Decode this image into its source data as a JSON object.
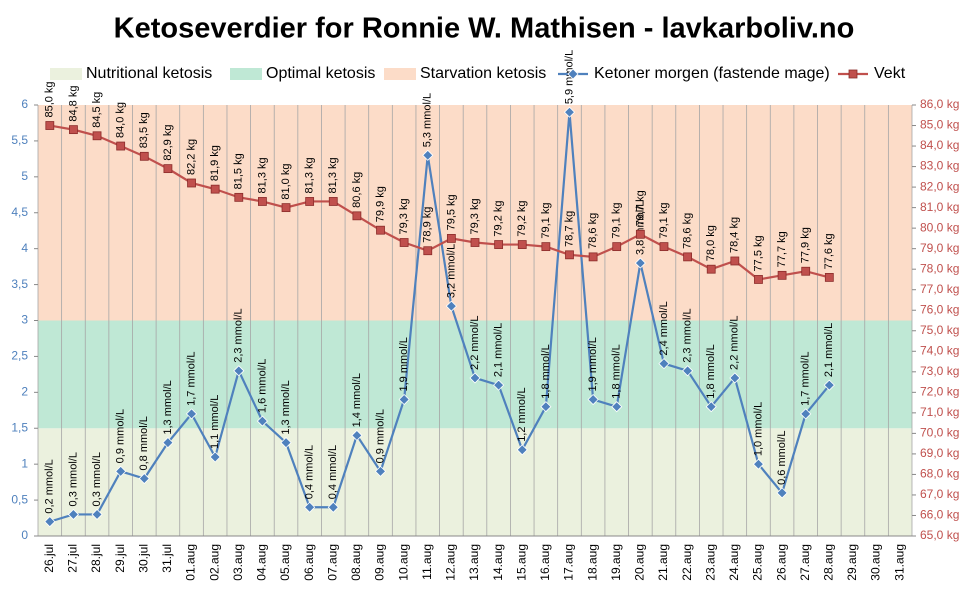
{
  "chart_data": {
    "type": "line",
    "title": "Ketoseverdier for Ronnie W. Mathisen - lavkarboliv.no",
    "categories": [
      "26.jul",
      "27.jul",
      "28.jul",
      "29.jul",
      "30.jul",
      "31.jul",
      "01.aug",
      "02.aug",
      "03.aug",
      "04.aug",
      "05.aug",
      "06.aug",
      "07.aug",
      "08.aug",
      "09.aug",
      "10.aug",
      "11.aug",
      "12.aug",
      "13.aug",
      "14.aug",
      "15.aug",
      "16.aug",
      "17.aug",
      "18.aug",
      "19.aug",
      "20.aug",
      "21.aug",
      "22.aug",
      "23.aug",
      "24.aug",
      "25.aug",
      "26.aug",
      "27.aug",
      "28.aug",
      "29.aug",
      "30.aug",
      "31.aug"
    ],
    "bands": [
      {
        "name": "Nutritional ketosis",
        "color": "#ebf1de",
        "value": 1.5
      },
      {
        "name": "Optimal ketosis",
        "color": "#bfe8d5",
        "value": 1.5
      },
      {
        "name": "Starvation ketosis",
        "color": "#fcdcc8",
        "value": 3
      }
    ],
    "series": [
      {
        "name": "Ketoner morgen (fastende mage)",
        "color": "#4f81bd",
        "marker": "diamond",
        "values": [
          0.2,
          0.3,
          0.3,
          0.9,
          0.8,
          1.3,
          1.7,
          1.1,
          2.3,
          1.6,
          1.3,
          0.4,
          0.4,
          1.4,
          0.9,
          1.9,
          5.3,
          3.2,
          2.2,
          2.1,
          1.2,
          1.8,
          5.9,
          1.9,
          1.8,
          3.8,
          2.4,
          2.3,
          1.8,
          2.2,
          1.0,
          0.6,
          1.7,
          2.1,
          null,
          null,
          null
        ],
        "value_labels": [
          "0,2 mmol/L",
          "0,3 mmol/L",
          "0,3 mmol/L",
          "0,9 mmol/L",
          "0,8 mmol/L",
          "1,3 mmol/L",
          "1,7 mmol/L",
          "1,1 mmol/L",
          "2,3 mmol/L",
          "1,6 mmol/L",
          "1,3 mmol/L",
          "0,4 mmol/L",
          "0,4 mmol/L",
          "1,4 mmol/L",
          "0,9 mmol/L",
          "1,9 mmol/L",
          "5,3 mmol/L",
          "3,2 mmol/L",
          "2,2 mmol/L",
          "2,1 mmol/L",
          "1,2 mmol/L",
          "1,8 mmol/L",
          "5,9 mmol/L",
          "1,9 mmol/L",
          "1,8 mmol/L",
          "3,8 mmol/L",
          "2,4 mmol/L",
          "2,3 mmol/L",
          "1,8 mmol/L",
          "2,2 mmol/L",
          "1,0 mmol/L",
          "0,6 mmol/L",
          "1,7 mmol/L",
          "2,1 mmol/L",
          null,
          null,
          null
        ]
      },
      {
        "name": "Vekt",
        "color": "#c0504d",
        "marker": "square",
        "axis": "y2",
        "values": [
          85.0,
          84.8,
          84.5,
          84.0,
          83.5,
          82.9,
          82.2,
          81.9,
          81.5,
          81.3,
          81.0,
          81.3,
          81.3,
          80.6,
          79.9,
          79.3,
          78.9,
          79.5,
          79.3,
          79.2,
          79.2,
          79.1,
          78.7,
          78.6,
          79.1,
          79.7,
          79.1,
          78.6,
          78.0,
          78.4,
          77.5,
          77.7,
          77.9,
          77.6,
          null,
          null,
          null
        ],
        "value_labels": [
          "85,0 kg",
          "84,8 kg",
          "84,5 kg",
          "84,0 kg",
          "83,5 kg",
          "82,9 kg",
          "82,2 kg",
          "81,9 kg",
          "81,5 kg",
          "81,3 kg",
          "81,0 kg",
          "81,3 kg",
          "81,3 kg",
          "80,6 kg",
          "79,9 kg",
          "79,3 kg",
          "78,9 kg",
          "79,5 kg",
          "79,3 kg",
          "79,2 kg",
          "79,2 kg",
          "79,1 kg",
          "78,7 kg",
          "78,6 kg",
          "79,1 kg",
          "79,7 kg",
          "79,1 kg",
          "78,6 kg",
          "78,0 kg",
          "78,4 kg",
          "77,5 kg",
          "77,7 kg",
          "77,9 kg",
          "77,6 kg",
          null,
          null,
          null
        ]
      }
    ],
    "ylim": [
      0,
      6
    ],
    "yticks": [
      0,
      {
        "value": 0.5,
        "label": "0,5"
      },
      1,
      {
        "value": 1.5,
        "label": "1,5"
      },
      2,
      {
        "value": 2.5,
        "label": "2,5"
      },
      3,
      {
        "value": 3.5,
        "label": "3,5"
      },
      4,
      {
        "value": 4.5,
        "label": "4,5"
      },
      5,
      {
        "value": 5.5,
        "label": "5,5"
      },
      6
    ],
    "y2lim": [
      65,
      86
    ],
    "y2ticks": [
      {
        "value": 65,
        "label": "65,0 kg"
      },
      {
        "value": 66,
        "label": "66,0 kg"
      },
      {
        "value": 67,
        "label": "67,0 kg"
      },
      {
        "value": 68,
        "label": "68,0 kg"
      },
      {
        "value": 69,
        "label": "69,0 kg"
      },
      {
        "value": 70,
        "label": "70,0 kg"
      },
      {
        "value": 71,
        "label": "71,0 kg"
      },
      {
        "value": 72,
        "label": "72,0 kg"
      },
      {
        "value": 73,
        "label": "73,0 kg"
      },
      {
        "value": 74,
        "label": "74,0 kg"
      },
      {
        "value": 75,
        "label": "75,0 kg"
      },
      {
        "value": 76,
        "label": "76,0 kg"
      },
      {
        "value": 77,
        "label": "77,0 kg"
      },
      {
        "value": 78,
        "label": "78,0 kg"
      },
      {
        "value": 79,
        "label": "79,0 kg"
      },
      {
        "value": 80,
        "label": "80,0 kg"
      },
      {
        "value": 81,
        "label": "81,0 kg"
      },
      {
        "value": 82,
        "label": "82,0 kg"
      },
      {
        "value": 83,
        "label": "83,0 kg"
      },
      {
        "value": 84,
        "label": "84,0 kg"
      },
      {
        "value": 85,
        "label": "85,0 kg"
      },
      {
        "value": 86,
        "label": "86,0 kg"
      }
    ],
    "grid": true
  }
}
